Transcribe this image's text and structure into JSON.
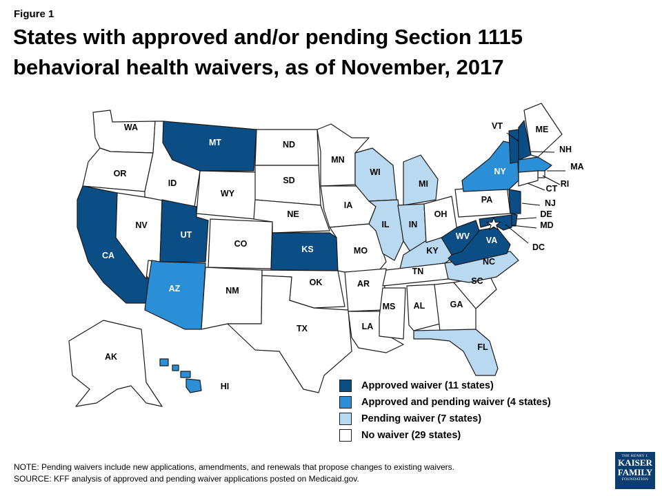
{
  "figure_label": "Figure 1",
  "title": "States with approved and/or pending Section 1115 behavioral health waivers, as of November, 2017",
  "colors": {
    "approved": "#0b4e86",
    "approved_pending": "#2a8fd6",
    "pending": "#b9d9f0",
    "none": "#ffffff"
  },
  "states": [
    {
      "abbr": "WA",
      "status": "none"
    },
    {
      "abbr": "OR",
      "status": "none"
    },
    {
      "abbr": "CA",
      "status": "approved"
    },
    {
      "abbr": "NV",
      "status": "none"
    },
    {
      "abbr": "ID",
      "status": "none"
    },
    {
      "abbr": "MT",
      "status": "approved"
    },
    {
      "abbr": "WY",
      "status": "none"
    },
    {
      "abbr": "UT",
      "status": "approved"
    },
    {
      "abbr": "AZ",
      "status": "approved_pending"
    },
    {
      "abbr": "CO",
      "status": "none"
    },
    {
      "abbr": "NM",
      "status": "none"
    },
    {
      "abbr": "ND",
      "status": "none"
    },
    {
      "abbr": "SD",
      "status": "none"
    },
    {
      "abbr": "NE",
      "status": "none"
    },
    {
      "abbr": "KS",
      "status": "approved"
    },
    {
      "abbr": "OK",
      "status": "none"
    },
    {
      "abbr": "TX",
      "status": "none"
    },
    {
      "abbr": "MN",
      "status": "none"
    },
    {
      "abbr": "IA",
      "status": "none"
    },
    {
      "abbr": "MO",
      "status": "none"
    },
    {
      "abbr": "AR",
      "status": "none"
    },
    {
      "abbr": "LA",
      "status": "none"
    },
    {
      "abbr": "WI",
      "status": "pending"
    },
    {
      "abbr": "IL",
      "status": "pending"
    },
    {
      "abbr": "MS",
      "status": "none"
    },
    {
      "abbr": "MI",
      "status": "pending"
    },
    {
      "abbr": "IN",
      "status": "pending"
    },
    {
      "abbr": "KY",
      "status": "pending"
    },
    {
      "abbr": "TN",
      "status": "none"
    },
    {
      "abbr": "AL",
      "status": "none"
    },
    {
      "abbr": "OH",
      "status": "none"
    },
    {
      "abbr": "GA",
      "status": "none"
    },
    {
      "abbr": "FL",
      "status": "pending"
    },
    {
      "abbr": "SC",
      "status": "none"
    },
    {
      "abbr": "NC",
      "status": "pending"
    },
    {
      "abbr": "VA",
      "status": "approved"
    },
    {
      "abbr": "WV",
      "status": "approved"
    },
    {
      "abbr": "PA",
      "status": "none"
    },
    {
      "abbr": "NY",
      "status": "approved_pending"
    },
    {
      "abbr": "VT",
      "status": "approved"
    },
    {
      "abbr": "NH",
      "status": "approved"
    },
    {
      "abbr": "ME",
      "status": "none"
    },
    {
      "abbr": "MA",
      "status": "approved_pending"
    },
    {
      "abbr": "RI",
      "status": "none"
    },
    {
      "abbr": "CT",
      "status": "none"
    },
    {
      "abbr": "NJ",
      "status": "approved"
    },
    {
      "abbr": "DE",
      "status": "approved"
    },
    {
      "abbr": "MD",
      "status": "approved"
    },
    {
      "abbr": "DC",
      "status": "none"
    },
    {
      "abbr": "AK",
      "status": "none"
    },
    {
      "abbr": "HI",
      "status": "approved_pending"
    }
  ],
  "legend": [
    {
      "label": "Approved waiver (11 states)",
      "status": "approved"
    },
    {
      "label": "Approved and pending waiver (4 states)",
      "status": "approved_pending"
    },
    {
      "label": "Pending waiver (7 states)",
      "status": "pending"
    },
    {
      "label": "No waiver (29 states)",
      "status": "none"
    }
  ],
  "note": "NOTE:  Pending waivers include new applications, amendments, and renewals that propose changes to existing waivers.",
  "source": "SOURCE:  KFF analysis of approved and pending waiver applications posted on Medicaid.gov.",
  "logo": {
    "line1": "THE HENRY J.",
    "line2": "KAISER",
    "line3": "FAMILY",
    "line4": "FOUNDATION"
  }
}
